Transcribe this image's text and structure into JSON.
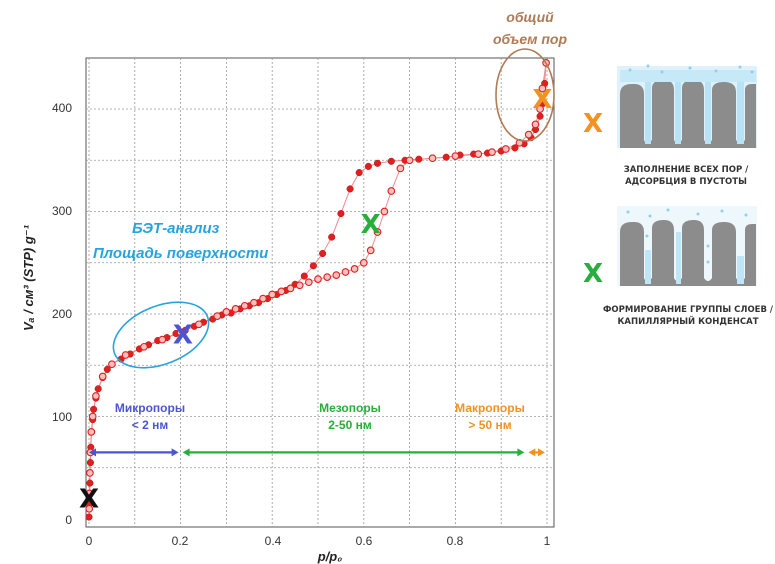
{
  "chart_data": {
    "type": "scatter",
    "xlabel": "p/p₀",
    "ylabel": "Vₐ / см³ (STP) g⁻¹",
    "xlim": [
      0,
      1
    ],
    "ylim": [
      0,
      450
    ],
    "x_ticks": [
      "0",
      "0.2",
      "0.4",
      "0.6",
      "0.8",
      "1"
    ],
    "y_ticks": [
      "0",
      "100",
      "200",
      "300",
      "400"
    ],
    "grid": true,
    "series": [
      {
        "role": "adsorption",
        "marker": "filled",
        "color": "#e02020",
        "points": [
          [
            0.0,
            2
          ],
          [
            0.001,
            15
          ],
          [
            0.002,
            35
          ],
          [
            0.003,
            55
          ],
          [
            0.004,
            70
          ],
          [
            0.006,
            85
          ],
          [
            0.008,
            97
          ],
          [
            0.01,
            107
          ],
          [
            0.015,
            118
          ],
          [
            0.02,
            127
          ],
          [
            0.03,
            138
          ],
          [
            0.04,
            146
          ],
          [
            0.05,
            151
          ],
          [
            0.07,
            156
          ],
          [
            0.09,
            161
          ],
          [
            0.11,
            166
          ],
          [
            0.13,
            170
          ],
          [
            0.15,
            174
          ],
          [
            0.17,
            177
          ],
          [
            0.19,
            181
          ],
          [
            0.21,
            184
          ],
          [
            0.23,
            188
          ],
          [
            0.25,
            192
          ],
          [
            0.27,
            195
          ],
          [
            0.29,
            199
          ],
          [
            0.31,
            201
          ],
          [
            0.33,
            205
          ],
          [
            0.35,
            208
          ],
          [
            0.37,
            211
          ],
          [
            0.39,
            215
          ],
          [
            0.41,
            219
          ],
          [
            0.43,
            223
          ],
          [
            0.45,
            229
          ],
          [
            0.47,
            237
          ],
          [
            0.49,
            247
          ],
          [
            0.51,
            259
          ],
          [
            0.53,
            275
          ],
          [
            0.55,
            298
          ],
          [
            0.57,
            322
          ],
          [
            0.59,
            338
          ],
          [
            0.61,
            344
          ],
          [
            0.63,
            347
          ],
          [
            0.66,
            349
          ],
          [
            0.69,
            350
          ],
          [
            0.72,
            351
          ],
          [
            0.75,
            352
          ],
          [
            0.78,
            353
          ],
          [
            0.81,
            355
          ],
          [
            0.84,
            356
          ],
          [
            0.87,
            357
          ],
          [
            0.9,
            359
          ],
          [
            0.93,
            362
          ],
          [
            0.95,
            366
          ],
          [
            0.965,
            372
          ],
          [
            0.975,
            380
          ],
          [
            0.985,
            393
          ],
          [
            0.99,
            405
          ],
          [
            0.995,
            425
          ],
          [
            0.998,
            445
          ]
        ]
      },
      {
        "role": "desorption",
        "marker": "open",
        "color": "#e02020",
        "points": [
          [
            0.998,
            445
          ],
          [
            0.99,
            420
          ],
          [
            0.985,
            400
          ],
          [
            0.975,
            385
          ],
          [
            0.96,
            375
          ],
          [
            0.94,
            367
          ],
          [
            0.91,
            361
          ],
          [
            0.88,
            358
          ],
          [
            0.85,
            356
          ],
          [
            0.8,
            354
          ],
          [
            0.75,
            352
          ],
          [
            0.7,
            350
          ],
          [
            0.68,
            342
          ],
          [
            0.66,
            320
          ],
          [
            0.645,
            300
          ],
          [
            0.63,
            280
          ],
          [
            0.615,
            262
          ],
          [
            0.6,
            250
          ],
          [
            0.58,
            244
          ],
          [
            0.56,
            241
          ],
          [
            0.54,
            238
          ],
          [
            0.52,
            236
          ],
          [
            0.5,
            234
          ],
          [
            0.48,
            231
          ],
          [
            0.46,
            228
          ],
          [
            0.44,
            225
          ],
          [
            0.42,
            222
          ],
          [
            0.4,
            219
          ],
          [
            0.38,
            215
          ],
          [
            0.36,
            211
          ],
          [
            0.34,
            208
          ],
          [
            0.32,
            205
          ],
          [
            0.3,
            202
          ],
          [
            0.28,
            198
          ],
          [
            0.24,
            190
          ],
          [
            0.2,
            182
          ],
          [
            0.16,
            175
          ],
          [
            0.12,
            168
          ],
          [
            0.08,
            160
          ],
          [
            0.05,
            151
          ],
          [
            0.03,
            139
          ],
          [
            0.015,
            120
          ],
          [
            0.008,
            100
          ],
          [
            0.005,
            85
          ],
          [
            0.003,
            65
          ],
          [
            0.002,
            45
          ],
          [
            0.001,
            25
          ],
          [
            0.0005,
            10
          ]
        ]
      }
    ],
    "ranges": [
      {
        "label1": "Микропоры",
        "label2": "< 2 нм",
        "from": 0,
        "to": 0.2,
        "y": 65,
        "color": "#4a55cf"
      },
      {
        "label1": "Мезопоры",
        "label2": "2-50 нм",
        "from": 0.2,
        "to": 0.955,
        "y": 65,
        "color": "#27ae3b"
      },
      {
        "label1": "Макропоры",
        "label2": "> 50 нм",
        "from": 0.955,
        "to": 1.0,
        "y": 65,
        "color": "#f39221"
      }
    ],
    "annotations": {
      "bet_line1": "БЭТ-анализ",
      "bet_line2": "Площадь поверхности",
      "total_line1": "общий",
      "total_line2": "объем пор",
      "markers": [
        {
          "symbol": "X",
          "x": 0.0,
          "y": 20,
          "color": "#111111"
        },
        {
          "symbol": "X",
          "x": 0.205,
          "y": 180,
          "color": "#4a55cf"
        },
        {
          "symbol": "X",
          "x": 0.615,
          "y": 288,
          "color": "#27ae3b"
        },
        {
          "symbol": "X",
          "x": 0.99,
          "y": 410,
          "color": "#f39221"
        }
      ]
    }
  },
  "legend_panel": {
    "items": [
      {
        "marker": "X",
        "color": "#f39221",
        "caption1": "ЗАПОЛНЕНИЕ ВСЕХ ПОР /",
        "caption2": "АДСОРБЦИЯ В ПУСТОТЫ"
      },
      {
        "marker": "X",
        "color": "#27ae3b",
        "caption1": "ФОРМИРОВАНИЕ ГРУППЫ СЛОЕВ /",
        "caption2": "КАПИЛЛЯРНЫЙ КОНДЕНСАТ"
      }
    ]
  }
}
